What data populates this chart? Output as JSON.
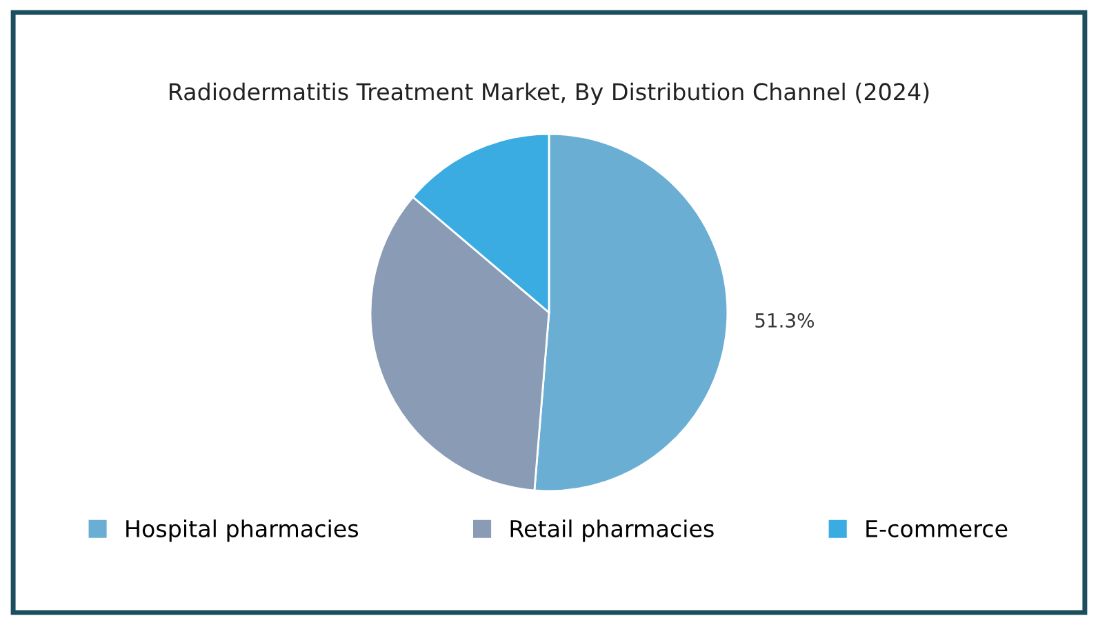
{
  "chart_data": {
    "type": "pie",
    "title": "Radiodermatitis Treatment Market, By Distribution Channel (2024)",
    "categories": [
      "Hospital pharmacies",
      "Retail pharmacies",
      "E-commerce"
    ],
    "values": [
      51.3,
      34.9,
      13.8
    ],
    "colors": [
      "#6aafd3",
      "#8a9bb5",
      "#3aace2"
    ],
    "value_labels": [
      "51.3%",
      null,
      null
    ],
    "legend": "bottom"
  }
}
